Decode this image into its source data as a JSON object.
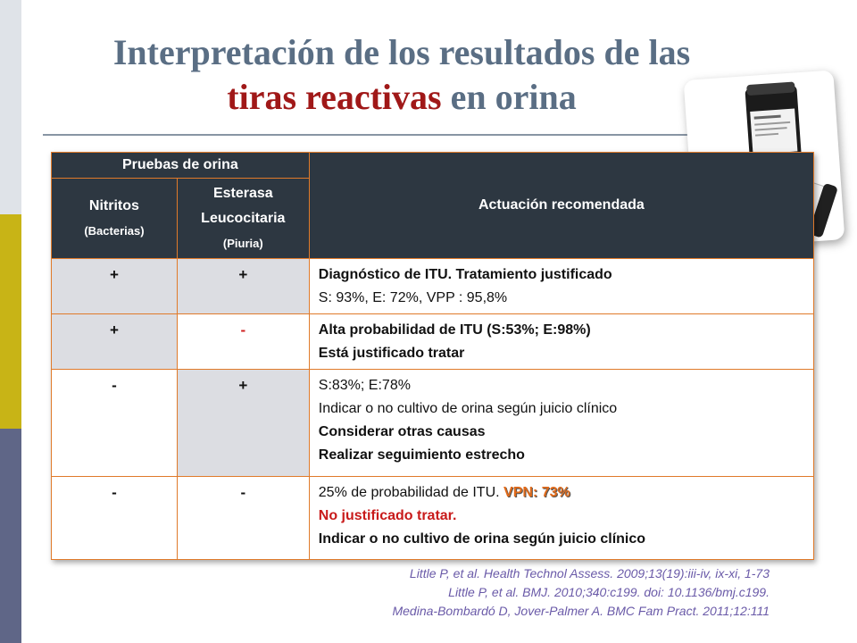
{
  "title": {
    "line1": "Interpretación de los resultados de las",
    "line2_red": "tiras reactivas",
    "line2_rest": " en orina"
  },
  "table": {
    "header": {
      "group": "Pruebas de orina",
      "col1_main": "Nitritos",
      "col1_sub": "(Bacterias)",
      "col2_main": "Esterasa Leucocitaria",
      "col2_sub": "(Piuria)",
      "col3": "Actuación recomendada"
    },
    "rows": [
      {
        "nitritos": "+",
        "esterasa": "+",
        "lines": [
          "Diagnóstico de ITU. Tratamiento justificado",
          "S: 93%, E: 72%, VPP : 95,8%"
        ]
      },
      {
        "nitritos": "+",
        "esterasa": "-",
        "lines": [
          "Alta probabilidad de ITU (S:53%; E:98%)",
          "Está justificado tratar"
        ]
      },
      {
        "nitritos": "-",
        "esterasa": "+",
        "lines": [
          "S:83%; E:78%",
          "Indicar o no cultivo de orina según juicio clínico",
          "Considerar otras causas",
          "Realizar seguimiento estrecho"
        ]
      },
      {
        "nitritos": "-",
        "esterasa": "-",
        "lines": [
          "25% de probabilidad de ITU. ",
          "VPN: 73%",
          "No  justificado tratar.",
          "Indicar o no cultivo de orina según juicio clínico"
        ]
      }
    ]
  },
  "references": [
    "Little P, et al. Health Technol Assess. 2009;13(19):iii-iv, ix-xi, 1-73",
    "Little P, et al. BMJ. 2010;340:c199. doi: 10.1136/bmj.c199.",
    "Medina-Bombardó D, Jover-Palmer A. BMC Fam Pract. 2011;12:111"
  ],
  "colors": {
    "title": "#5a6e84",
    "title_accent": "#a01818",
    "header_bg": "#2d3741",
    "border": "#e07a2a",
    "negative_red": "#d02020",
    "reference_text": "#6a5aa8"
  }
}
